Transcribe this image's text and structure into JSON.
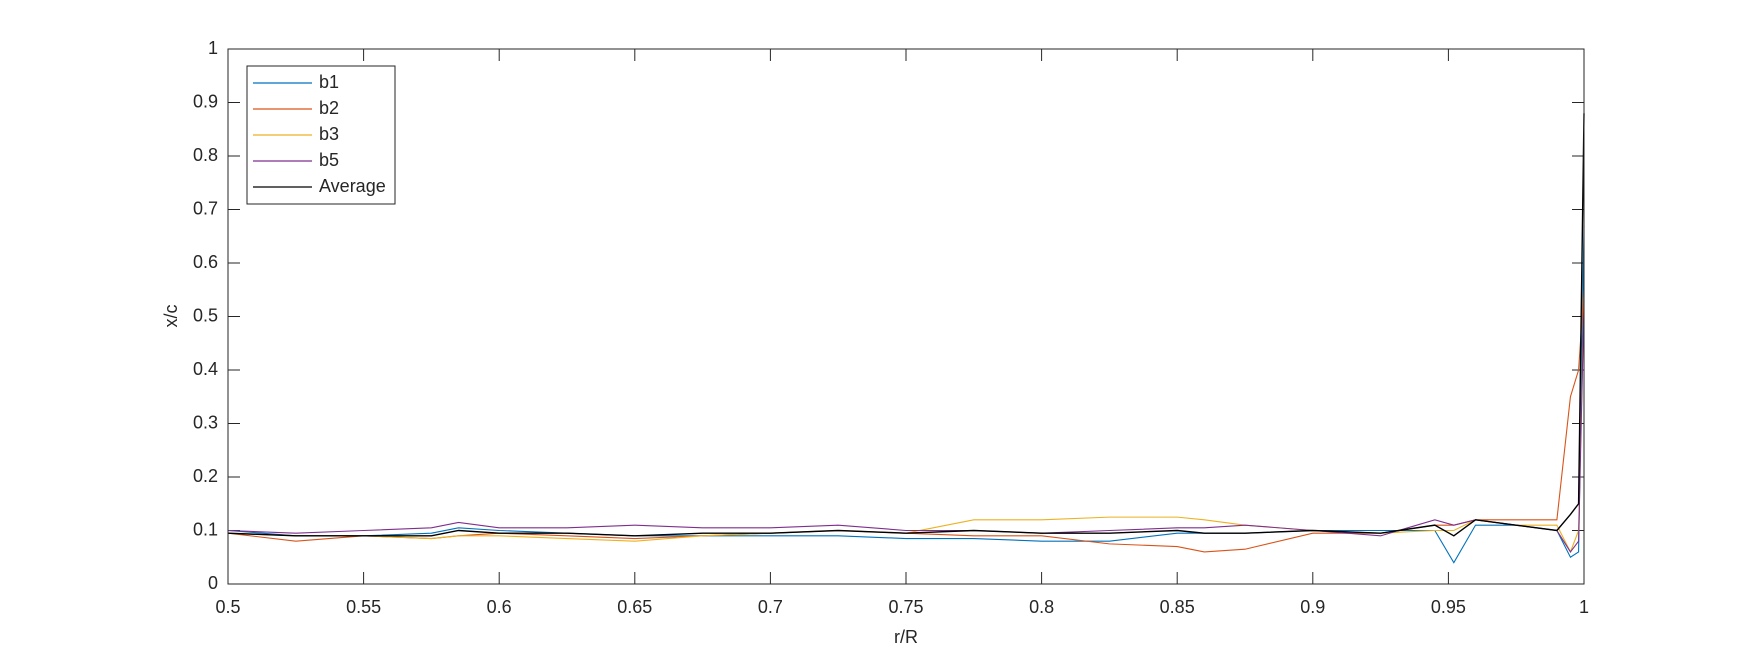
{
  "chart_data": {
    "type": "line",
    "x": [
      0.5,
      0.525,
      0.55,
      0.575,
      0.585,
      0.6,
      0.625,
      0.65,
      0.675,
      0.7,
      0.725,
      0.75,
      0.775,
      0.8,
      0.825,
      0.85,
      0.86,
      0.875,
      0.9,
      0.925,
      0.945,
      0.952,
      0.96,
      0.975,
      0.99,
      0.995,
      0.998,
      1.0
    ],
    "series": [
      {
        "name": "b1",
        "color": "#0072BD",
        "values": [
          0.1,
          0.09,
          0.09,
          0.095,
          0.105,
          0.1,
          0.095,
          0.09,
          0.09,
          0.09,
          0.09,
          0.085,
          0.085,
          0.08,
          0.08,
          0.095,
          0.095,
          0.095,
          0.1,
          0.1,
          0.1,
          0.04,
          0.11,
          0.11,
          0.1,
          0.05,
          0.06,
          0.67
        ]
      },
      {
        "name": "b2",
        "color": "#D95319",
        "values": [
          0.095,
          0.08,
          0.09,
          0.085,
          0.09,
          0.095,
          0.09,
          0.085,
          0.09,
          0.095,
          0.1,
          0.095,
          0.09,
          0.09,
          0.075,
          0.07,
          0.06,
          0.065,
          0.095,
          0.095,
          0.11,
          0.11,
          0.12,
          0.12,
          0.12,
          0.35,
          0.4,
          0.55
        ]
      },
      {
        "name": "b3",
        "color": "#EDB120",
        "values": [
          0.095,
          0.09,
          0.09,
          0.085,
          0.09,
          0.09,
          0.085,
          0.08,
          0.09,
          0.095,
          0.1,
          0.095,
          0.12,
          0.12,
          0.125,
          0.125,
          0.12,
          0.11,
          0.1,
          0.095,
          0.1,
          0.1,
          0.12,
          0.11,
          0.11,
          0.06,
          0.1,
          0.54
        ]
      },
      {
        "name": "b5",
        "color": "#7E2F8E",
        "values": [
          0.1,
          0.095,
          0.1,
          0.105,
          0.115,
          0.105,
          0.105,
          0.11,
          0.105,
          0.105,
          0.11,
          0.1,
          0.1,
          0.095,
          0.1,
          0.105,
          0.105,
          0.11,
          0.1,
          0.09,
          0.12,
          0.11,
          0.12,
          0.11,
          0.1,
          0.06,
          0.08,
          0.53
        ]
      },
      {
        "name": "Average",
        "color": "#000000",
        "values": [
          0.095,
          0.09,
          0.09,
          0.09,
          0.1,
          0.095,
          0.095,
          0.09,
          0.095,
          0.095,
          0.1,
          0.095,
          0.1,
          0.095,
          0.095,
          0.1,
          0.095,
          0.095,
          0.1,
          0.095,
          0.11,
          0.09,
          0.12,
          0.11,
          0.1,
          0.13,
          0.15,
          0.88
        ]
      }
    ],
    "xlabel": "r/R",
    "ylabel": "x/c",
    "xlim": [
      0.5,
      1
    ],
    "xticks": [
      0.5,
      0.55,
      0.6,
      0.65,
      0.7,
      0.75,
      0.8,
      0.85,
      0.9,
      0.95,
      1
    ],
    "ylim": [
      0,
      1
    ],
    "yticks": [
      0,
      0.1,
      0.2,
      0.3,
      0.4,
      0.5,
      0.6,
      0.7,
      0.8,
      0.9,
      1
    ],
    "legend": "northwest",
    "grid": false
  }
}
